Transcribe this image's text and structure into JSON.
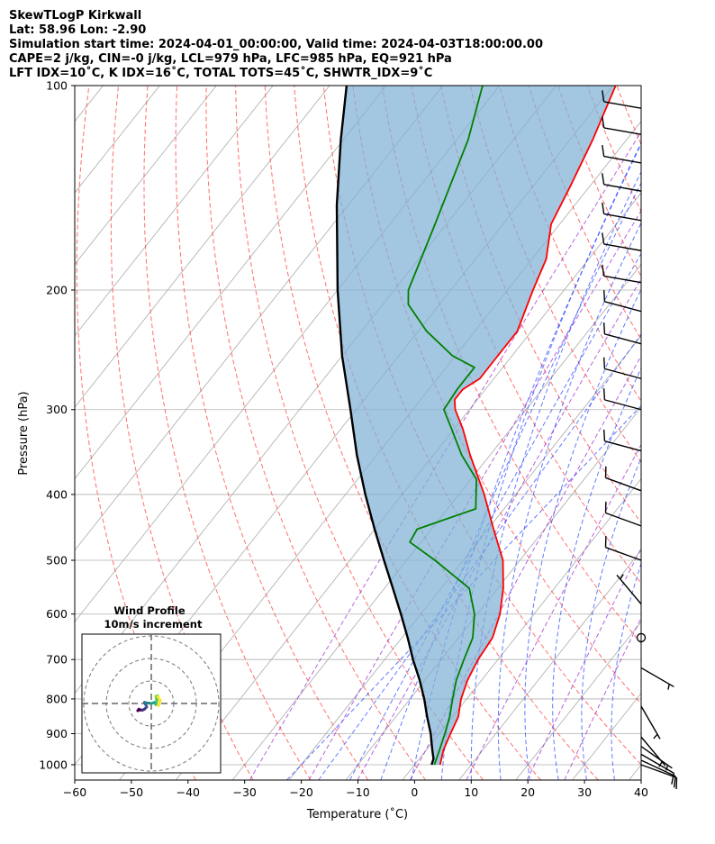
{
  "header": {
    "line1": "SkewTLogP Kirkwall",
    "line2": "Lat: 58.96   Lon: -2.90",
    "line3": "Simulation start time: 2024-04-01_00:00:00, Valid time: 2024-04-03T18:00:00.00",
    "line4": "CAPE=2 j/kg, CIN=-0 j/kg, LCL=979 hPa, LFC=985 hPa, EQ=921 hPa",
    "line5": "LFT IDX=10˚C, K IDX=16˚C, TOTAL TOTS=45˚C, SHWTR_IDX=9˚C"
  },
  "chart_data": {
    "type": "line",
    "title": "SkewTLogP Kirkwall",
    "xlabel": "Temperature (˚C)",
    "ylabel": "Pressure (hPa)",
    "xlim": [
      -60,
      40
    ],
    "ylim": [
      1050,
      100
    ],
    "x_ticks": [
      "−60",
      "−50",
      "−40",
      "−30",
      "−20",
      "−10",
      "0",
      "10",
      "20",
      "30",
      "40"
    ],
    "x_tick_values": [
      -60,
      -50,
      -40,
      -30,
      -20,
      -10,
      0,
      10,
      20,
      30,
      40
    ],
    "y_ticks": [
      "100",
      "200",
      "300",
      "400",
      "500",
      "600",
      "700",
      "800",
      "900",
      "1000"
    ],
    "y_tick_values": [
      100,
      200,
      300,
      400,
      500,
      600,
      700,
      800,
      900,
      1000
    ],
    "skew_deg_per_decade": 95,
    "series": [
      {
        "name": "Temperature",
        "color": "#ff0000",
        "points": [
          [
            1000,
            4.5
          ],
          [
            950,
            3.0
          ],
          [
            900,
            2.0
          ],
          [
            850,
            1.0
          ],
          [
            800,
            -1.0
          ],
          [
            750,
            -2.5
          ],
          [
            700,
            -3.5
          ],
          [
            650,
            -4.0
          ],
          [
            600,
            -6.0
          ],
          [
            550,
            -9.0
          ],
          [
            500,
            -13.0
          ],
          [
            450,
            -19.0
          ],
          [
            400,
            -25.5
          ],
          [
            350,
            -33.5
          ],
          [
            320,
            -38.5
          ],
          [
            300,
            -42.5
          ],
          [
            290,
            -44.0
          ],
          [
            280,
            -44.0
          ],
          [
            270,
            -42.5
          ],
          [
            250,
            -42.5
          ],
          [
            230,
            -42.5
          ],
          [
            200,
            -45.5
          ],
          [
            180,
            -47.5
          ],
          [
            160,
            -51.5
          ],
          [
            140,
            -53.5
          ],
          [
            120,
            -56.0
          ],
          [
            100,
            -59.5
          ]
        ]
      },
      {
        "name": "Dewpoint",
        "color": "#008000",
        "points": [
          [
            1000,
            3.5
          ],
          [
            950,
            2.3
          ],
          [
            900,
            1.0
          ],
          [
            850,
            -0.5
          ],
          [
            800,
            -2.5
          ],
          [
            750,
            -4.5
          ],
          [
            700,
            -6.0
          ],
          [
            650,
            -7.5
          ],
          [
            600,
            -10.5
          ],
          [
            550,
            -15.0
          ],
          [
            500,
            -25.0
          ],
          [
            470,
            -32.0
          ],
          [
            450,
            -32.5
          ],
          [
            420,
            -25.0
          ],
          [
            380,
            -29.0
          ],
          [
            350,
            -35.0
          ],
          [
            320,
            -40.5
          ],
          [
            300,
            -44.5
          ],
          [
            280,
            -45.0
          ],
          [
            260,
            -45.0
          ],
          [
            250,
            -50.5
          ],
          [
            230,
            -58.5
          ],
          [
            210,
            -65.5
          ],
          [
            200,
            -67.5
          ],
          [
            160,
            -72.0
          ],
          [
            120,
            -78.0
          ],
          [
            100,
            -83.0
          ]
        ]
      },
      {
        "name": "Parcel",
        "color": "#000000",
        "points": [
          [
            1000,
            3.0
          ],
          [
            980,
            2.5
          ],
          [
            950,
            1.0
          ],
          [
            900,
            -1.5
          ],
          [
            850,
            -4.5
          ],
          [
            800,
            -7.5
          ],
          [
            750,
            -11.0
          ],
          [
            700,
            -15.0
          ],
          [
            650,
            -19.0
          ],
          [
            600,
            -23.5
          ],
          [
            550,
            -28.5
          ],
          [
            500,
            -34.0
          ],
          [
            450,
            -40.0
          ],
          [
            400,
            -46.5
          ],
          [
            350,
            -53.5
          ],
          [
            300,
            -61.0
          ],
          [
            250,
            -70.0
          ],
          [
            200,
            -80.0
          ],
          [
            150,
            -92.0
          ],
          [
            120,
            -100.5
          ],
          [
            100,
            -107.0
          ]
        ]
      }
    ],
    "wind_barbs": [
      {
        "p": 1000,
        "speed_kt": 12,
        "dir_deg": 110
      },
      {
        "p": 985,
        "speed_kt": 12,
        "dir_deg": 115
      },
      {
        "p": 965,
        "speed_kt": 10,
        "dir_deg": 120
      },
      {
        "p": 940,
        "speed_kt": 8,
        "dir_deg": 125
      },
      {
        "p": 910,
        "speed_kt": 6,
        "dir_deg": 140
      },
      {
        "p": 820,
        "speed_kt": 5,
        "dir_deg": 150
      },
      {
        "p": 720,
        "speed_kt": 5,
        "dir_deg": 120
      },
      {
        "p": 650,
        "speed_kt": 0,
        "dir_deg": 0
      },
      {
        "p": 580,
        "speed_kt": 5,
        "dir_deg": 320
      },
      {
        "p": 500,
        "speed_kt": 10,
        "dir_deg": 290
      },
      {
        "p": 445,
        "speed_kt": 10,
        "dir_deg": 290
      },
      {
        "p": 395,
        "speed_kt": 10,
        "dir_deg": 290
      },
      {
        "p": 345,
        "speed_kt": 10,
        "dir_deg": 285
      },
      {
        "p": 300,
        "speed_kt": 10,
        "dir_deg": 285
      },
      {
        "p": 270,
        "speed_kt": 10,
        "dir_deg": 285
      },
      {
        "p": 240,
        "speed_kt": 10,
        "dir_deg": 285
      },
      {
        "p": 215,
        "speed_kt": 10,
        "dir_deg": 285
      },
      {
        "p": 195,
        "speed_kt": 10,
        "dir_deg": 280
      },
      {
        "p": 175,
        "speed_kt": 10,
        "dir_deg": 280
      },
      {
        "p": 158,
        "speed_kt": 10,
        "dir_deg": 280
      },
      {
        "p": 143,
        "speed_kt": 10,
        "dir_deg": 280
      },
      {
        "p": 130,
        "speed_kt": 10,
        "dir_deg": 280
      },
      {
        "p": 118,
        "speed_kt": 10,
        "dir_deg": 280
      },
      {
        "p": 108,
        "speed_kt": 10,
        "dir_deg": 280
      }
    ],
    "hodograph": {
      "title_line1": "Wind Profile",
      "title_line2": "10m/s increment",
      "ring_increment_ms": 10,
      "rings": 3,
      "points_ms": [
        [
          3.2,
          -1.0
        ],
        [
          4.0,
          1.5
        ],
        [
          3.0,
          2.8
        ],
        [
          2.8,
          3.5
        ],
        [
          2.0,
          3.2
        ],
        [
          2.5,
          1.5
        ],
        [
          2.2,
          0.5
        ],
        [
          2.0,
          -0.5
        ],
        [
          1.5,
          0.5
        ],
        [
          0.0,
          0.0
        ],
        [
          -1.5,
          0.2
        ],
        [
          -2.5,
          0.3
        ],
        [
          -3.0,
          0.5
        ],
        [
          -2.5,
          -0.5
        ],
        [
          -2.0,
          -1.5
        ],
        [
          -3.0,
          -2.5
        ],
        [
          -4.0,
          -3.0
        ],
        [
          -5.0,
          -2.8
        ],
        [
          -6.0,
          -3.2
        ],
        [
          -5.5,
          -2.5
        ]
      ]
    }
  }
}
